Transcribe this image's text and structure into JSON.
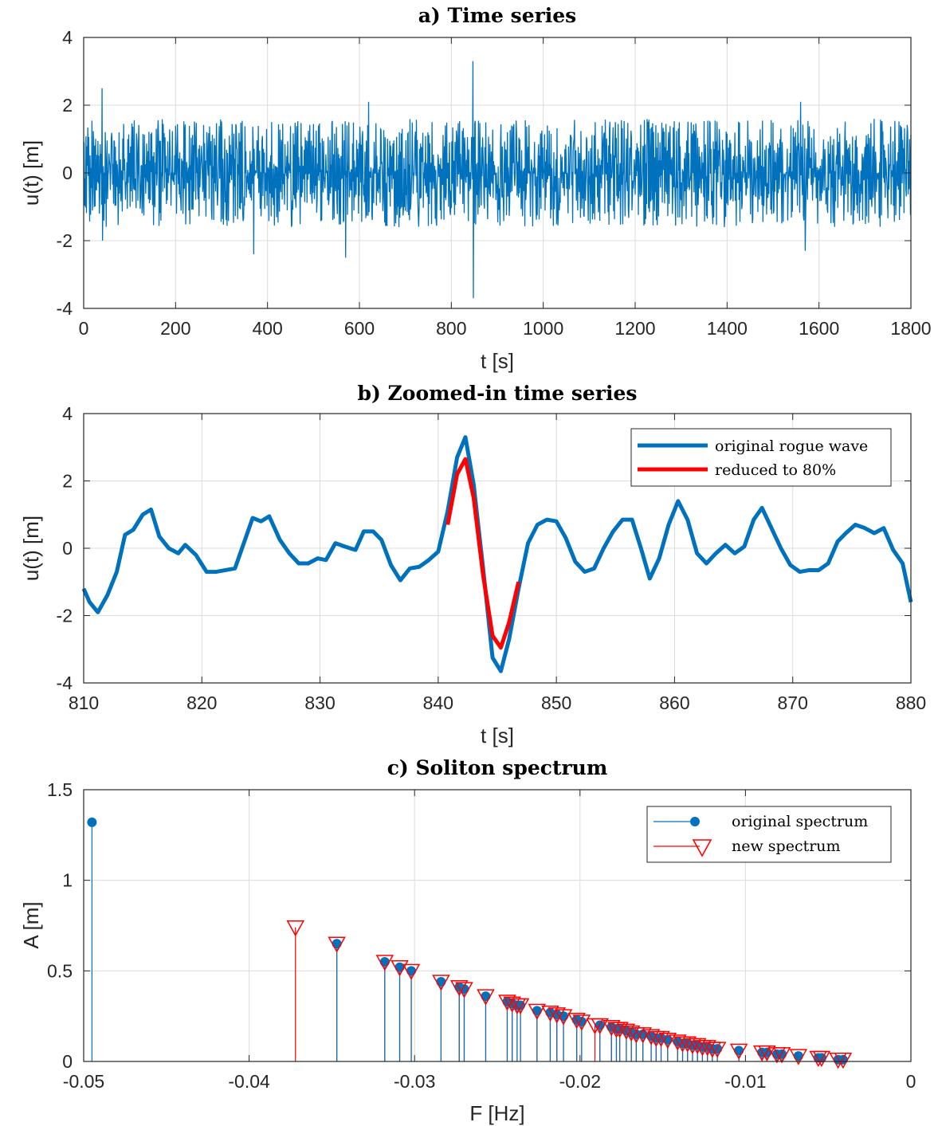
{
  "colors": {
    "blue": "#0072BD",
    "red": "#FF0000"
  },
  "chart_data": [
    {
      "type": "line",
      "title": "a) Time series",
      "xlabel": "t [s]",
      "ylabel": "u(t) [m]",
      "xlim": [
        0,
        1800
      ],
      "ylim": [
        -4,
        4
      ],
      "xticks": [
        0,
        200,
        400,
        600,
        800,
        1000,
        1200,
        1400,
        1600,
        1800
      ],
      "yticks": [
        -4,
        -2,
        0,
        2,
        4
      ],
      "grid": true,
      "series": [
        {
          "color": "#0072BD",
          "sample_interval_s": 1,
          "extremes": [
            {
              "t": 40,
              "u": 2.5
            },
            {
              "t": 41,
              "u": -2.0
            },
            {
              "t": 370,
              "u": -2.4
            },
            {
              "t": 570,
              "u": -2.5
            },
            {
              "t": 620,
              "u": 2.1
            },
            {
              "t": 847,
              "u": 3.3
            },
            {
              "t": 848,
              "u": -3.7
            },
            {
              "t": 1570,
              "u": -2.3
            },
            {
              "t": 1560,
              "u": 2.1
            }
          ]
        }
      ]
    },
    {
      "type": "line",
      "title": "b) Zoomed-in time series",
      "xlabel": "t [s]",
      "ylabel": "u(t) [m]",
      "xlim": [
        810,
        880
      ],
      "ylim": [
        -4,
        4
      ],
      "xticks": [
        810,
        820,
        830,
        840,
        850,
        860,
        870,
        880
      ],
      "yticks": [
        -4,
        -2,
        0,
        2,
        4
      ],
      "grid": true,
      "legend": "top-right",
      "series": [
        {
          "name": "original rogue wave",
          "color": "#0072BD",
          "x": [
            810,
            810.5,
            811.2,
            812,
            812.8,
            813.5,
            814.2,
            815,
            815.7,
            816.4,
            817.2,
            818,
            818.6,
            819.5,
            820.4,
            821.2,
            822,
            822.8,
            823.6,
            824.3,
            825,
            825.7,
            826.6,
            827.4,
            828.2,
            829,
            829.8,
            830.5,
            831.3,
            832.1,
            833,
            833.7,
            834.5,
            835.2,
            836,
            836.8,
            837.6,
            838.4,
            839.2,
            840,
            840.8,
            841.6,
            842.3,
            843,
            843.8,
            844.6,
            845.3,
            846,
            846.8,
            847.6,
            848.4,
            849.2,
            850,
            850.8,
            851.6,
            852.4,
            853.2,
            854,
            854.8,
            855.6,
            856.4,
            857.2,
            857.9,
            858.7,
            859.5,
            860.3,
            861.1,
            861.9,
            862.7,
            863.5,
            864.3,
            865.1,
            865.9,
            866.7,
            867.4,
            868.2,
            869,
            869.8,
            870.6,
            871.4,
            872.2,
            873,
            873.8,
            874.5,
            875.3,
            876.1,
            876.9,
            877.7,
            878.5,
            879.3,
            880
          ],
          "y": [
            -1.2,
            -1.6,
            -1.9,
            -1.4,
            -0.7,
            0.4,
            0.55,
            1.0,
            1.15,
            0.35,
            0.0,
            -0.15,
            0.1,
            -0.2,
            -0.7,
            -0.7,
            -0.65,
            -0.6,
            0.2,
            0.9,
            0.8,
            0.95,
            0.25,
            -0.15,
            -0.45,
            -0.45,
            -0.3,
            -0.35,
            0.15,
            0.05,
            -0.05,
            0.5,
            0.5,
            0.25,
            -0.5,
            -0.95,
            -0.6,
            -0.55,
            -0.35,
            -0.1,
            1.1,
            2.7,
            3.3,
            1.9,
            -0.6,
            -3.25,
            -3.65,
            -2.7,
            -1.2,
            0.15,
            0.7,
            0.85,
            0.8,
            0.3,
            -0.4,
            -0.7,
            -0.6,
            0.0,
            0.5,
            0.85,
            0.85,
            -0.05,
            -0.9,
            -0.3,
            0.7,
            1.4,
            0.85,
            -0.15,
            -0.45,
            -0.15,
            0.1,
            -0.15,
            0.05,
            0.85,
            1.2,
            0.6,
            0.0,
            -0.5,
            -0.7,
            -0.65,
            -0.65,
            -0.45,
            0.2,
            0.45,
            0.7,
            0.6,
            0.45,
            0.6,
            -0.05,
            -0.45,
            -1.6
          ]
        },
        {
          "name": "reduced to 80%",
          "color": "#FF0000",
          "x": [
            840.8,
            841.6,
            842.3,
            843,
            843.8,
            844.6,
            845.3,
            846,
            846.8
          ],
          "y": [
            0.7,
            2.2,
            2.65,
            1.5,
            -0.8,
            -2.6,
            -2.95,
            -2.2,
            -1.0
          ]
        }
      ]
    },
    {
      "type": "stem",
      "title": "c) Soliton spectrum",
      "xlabel": "F [Hz]",
      "ylabel": "A [m]",
      "xlim": [
        -0.05,
        0
      ],
      "ylim": [
        0,
        1.5
      ],
      "xticks": [
        -0.05,
        -0.04,
        -0.03,
        -0.02,
        -0.01,
        0
      ],
      "xticklabels": [
        "-0.05",
        "-0.04",
        "-0.03",
        "-0.02",
        "-0.01",
        "0"
      ],
      "yticks": [
        0,
        0.5,
        1,
        1.5
      ],
      "yticklabels": [
        "0",
        "0.5",
        "1",
        "1.5"
      ],
      "grid": true,
      "legend": "top-right",
      "series": [
        {
          "name": "original spectrum",
          "color": "#0072BD",
          "marker": "filled-circle",
          "x": [
            -0.0495,
            -0.0347,
            -0.0318,
            -0.0309,
            -0.0302,
            -0.0284,
            -0.0273,
            -0.027,
            -0.0257,
            -0.0244,
            -0.0241,
            -0.0238,
            -0.0236,
            -0.0226,
            -0.0218,
            -0.0214,
            -0.021,
            -0.0202,
            -0.0199,
            -0.0188,
            -0.0181,
            -0.0178,
            -0.0176,
            -0.0172,
            -0.0169,
            -0.0166,
            -0.0162,
            -0.0157,
            -0.0154,
            -0.0151,
            -0.0147,
            -0.0141,
            -0.0138,
            -0.0135,
            -0.0132,
            -0.0129,
            -0.0126,
            -0.0123,
            -0.012,
            -0.0117,
            -0.0104,
            -0.009,
            -0.0087,
            -0.0081,
            -0.0078,
            -0.0068,
            -0.0056,
            -0.0054,
            -0.0044,
            -0.0041
          ],
          "y": [
            1.32,
            0.65,
            0.55,
            0.52,
            0.5,
            0.44,
            0.41,
            0.4,
            0.36,
            0.33,
            0.32,
            0.31,
            0.31,
            0.28,
            0.27,
            0.26,
            0.25,
            0.23,
            0.22,
            0.2,
            0.19,
            0.18,
            0.18,
            0.17,
            0.16,
            0.15,
            0.15,
            0.14,
            0.13,
            0.13,
            0.12,
            0.11,
            0.1,
            0.1,
            0.09,
            0.09,
            0.08,
            0.08,
            0.07,
            0.07,
            0.06,
            0.05,
            0.05,
            0.04,
            0.04,
            0.03,
            0.02,
            0.02,
            0.01,
            0.01
          ]
        },
        {
          "name": "new spectrum",
          "color": "#FF0000",
          "marker": "open-triangle-down",
          "x": [
            -0.0372,
            -0.0347,
            -0.0318,
            -0.0309,
            -0.0302,
            -0.0284,
            -0.0273,
            -0.027,
            -0.0257,
            -0.0244,
            -0.0241,
            -0.0238,
            -0.0236,
            -0.0226,
            -0.0218,
            -0.0214,
            -0.021,
            -0.0202,
            -0.0199,
            -0.0191,
            -0.0188,
            -0.0181,
            -0.0178,
            -0.0176,
            -0.0172,
            -0.0169,
            -0.0166,
            -0.0162,
            -0.0157,
            -0.0154,
            -0.0151,
            -0.0147,
            -0.0141,
            -0.0138,
            -0.0135,
            -0.0132,
            -0.0129,
            -0.0126,
            -0.0123,
            -0.012,
            -0.0117,
            -0.0104,
            -0.009,
            -0.0087,
            -0.0081,
            -0.0078,
            -0.0068,
            -0.0056,
            -0.0054,
            -0.0044,
            -0.0041
          ],
          "y": [
            0.74,
            0.65,
            0.55,
            0.52,
            0.5,
            0.44,
            0.41,
            0.4,
            0.36,
            0.33,
            0.32,
            0.31,
            0.31,
            0.28,
            0.27,
            0.26,
            0.25,
            0.23,
            0.22,
            0.2,
            0.2,
            0.19,
            0.18,
            0.18,
            0.17,
            0.16,
            0.15,
            0.15,
            0.14,
            0.13,
            0.13,
            0.12,
            0.11,
            0.1,
            0.1,
            0.09,
            0.09,
            0.08,
            0.08,
            0.07,
            0.07,
            0.06,
            0.05,
            0.05,
            0.04,
            0.04,
            0.03,
            0.02,
            0.02,
            0.01,
            0.01
          ]
        }
      ]
    }
  ]
}
